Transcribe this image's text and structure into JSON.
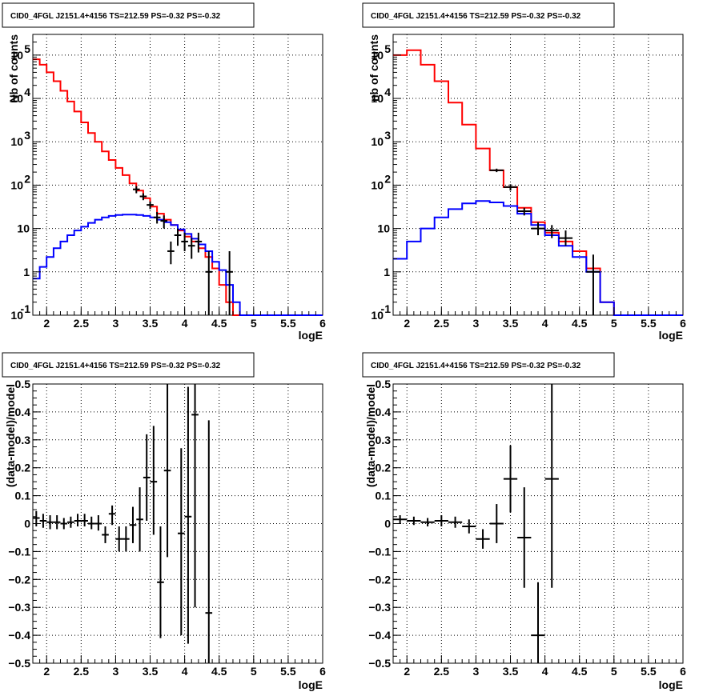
{
  "chart_data": [
    {
      "type": "histogram",
      "title": "CID0_4FGL J2151.4+4156 TS=212.59 PS=-0.32 PS=-0.32",
      "xlabel": "logE",
      "ylabel": "Nb of counts",
      "xlim": [
        1.8,
        6.0
      ],
      "ylim": [
        0.1,
        300000
      ],
      "yscale": "log",
      "grid": true,
      "x_ticks": [
        "2",
        "2.5",
        "3",
        "3.5",
        "4",
        "4.5",
        "5",
        "5.5",
        "6"
      ],
      "y_ticks": [
        {
          "v": 0.1,
          "b": "10",
          "e": "-1"
        },
        {
          "v": 1,
          "b": "1",
          "e": ""
        },
        {
          "v": 10,
          "b": "10",
          "e": ""
        },
        {
          "v": 100,
          "b": "10",
          "e": "2"
        },
        {
          "v": 1000,
          "b": "10",
          "e": "3"
        },
        {
          "v": 10000,
          "b": "10",
          "e": "4"
        },
        {
          "v": 100000,
          "b": "10",
          "e": "5"
        }
      ],
      "bin_edges": [
        1.8,
        1.9,
        2.0,
        2.1,
        2.2,
        2.3,
        2.4,
        2.5,
        2.6,
        2.7,
        2.8,
        2.9,
        3.0,
        3.1,
        3.2,
        3.3,
        3.4,
        3.5,
        3.6,
        3.7,
        3.8,
        3.9,
        4.0,
        4.1,
        4.2,
        4.3,
        4.4,
        4.5,
        4.6,
        4.7,
        4.8,
        4.9,
        5.0,
        5.1,
        5.2,
        5.3,
        5.4,
        5.5,
        5.6,
        5.7,
        5.8,
        5.9,
        6.0
      ],
      "series": [
        {
          "color": "#ff0000",
          "values": [
            80000,
            60000,
            40000,
            25000,
            15000,
            8500,
            5000,
            2800,
            1600,
            1000,
            600,
            380,
            250,
            170,
            110,
            75,
            50,
            32,
            22,
            16,
            12,
            9,
            6.5,
            5,
            3.5,
            2.2,
            1.2,
            0.5,
            0.2,
            0.1,
            0.1,
            0.1,
            0.1,
            0.1,
            0.1,
            0.1,
            0.1,
            0.1,
            0.1,
            0.1,
            0.1,
            0.1
          ]
        },
        {
          "color": "#0000ff",
          "values": [
            0.7,
            1.3,
            2.2,
            3.5,
            5,
            7,
            9,
            11,
            13.5,
            16,
            18,
            19.5,
            20.5,
            21,
            21,
            20.5,
            19.5,
            18,
            16,
            14,
            12,
            9.5,
            7.5,
            5.8,
            4.3,
            3,
            1.7,
            1.1,
            0.5,
            0.2,
            0.1,
            0.1,
            0.1,
            0.1,
            0.1,
            0.1,
            0.1,
            0.1,
            0.1,
            0.1,
            0.1,
            0.1
          ]
        }
      ],
      "points": [
        {
          "x": 3.3,
          "y": 80,
          "ylo": 65,
          "yhi": 95,
          "xerr": 0.05
        },
        {
          "x": 3.4,
          "y": 55,
          "ylo": 45,
          "yhi": 65,
          "xerr": 0.05
        },
        {
          "x": 3.5,
          "y": 35,
          "ylo": 28,
          "yhi": 42,
          "xerr": 0.05
        },
        {
          "x": 3.6,
          "y": 18,
          "ylo": 13,
          "yhi": 24,
          "xerr": 0.05
        },
        {
          "x": 3.7,
          "y": 15,
          "ylo": 10,
          "yhi": 20,
          "xerr": 0.05
        },
        {
          "x": 3.8,
          "y": 3,
          "ylo": 1.5,
          "yhi": 5,
          "xerr": 0.05
        },
        {
          "x": 3.9,
          "y": 7,
          "ylo": 4,
          "yhi": 10,
          "xerr": 0.05
        },
        {
          "x": 4.0,
          "y": 5,
          "ylo": 3,
          "yhi": 8,
          "xerr": 0.05
        },
        {
          "x": 4.1,
          "y": 4,
          "ylo": 2,
          "yhi": 6,
          "xerr": 0.05
        },
        {
          "x": 4.2,
          "y": 5,
          "ylo": 2.8,
          "yhi": 8,
          "xerr": 0.05
        },
        {
          "x": 4.35,
          "y": 1,
          "ylo": 0.1,
          "yhi": 3,
          "xerr": 0.05
        },
        {
          "x": 4.65,
          "y": 1,
          "ylo": 0.1,
          "yhi": 3,
          "xerr": 0.05
        }
      ]
    },
    {
      "type": "histogram",
      "title": "CID0_4FGL J2151.4+4156 TS=212.59 PS=-0.32 PS=-0.32",
      "xlabel": "logE",
      "ylabel": "nb of counts",
      "xlim": [
        1.8,
        6.0
      ],
      "ylim": [
        0.1,
        300000
      ],
      "yscale": "log",
      "grid": true,
      "x_ticks": [
        "2",
        "2.5",
        "3",
        "3.5",
        "4",
        "4.5",
        "5",
        "5.5",
        "6"
      ],
      "y_ticks": [
        {
          "v": 0.1,
          "b": "10",
          "e": "-1"
        },
        {
          "v": 1,
          "b": "1",
          "e": ""
        },
        {
          "v": 10,
          "b": "10",
          "e": ""
        },
        {
          "v": 100,
          "b": "10",
          "e": "2"
        },
        {
          "v": 1000,
          "b": "10",
          "e": "3"
        },
        {
          "v": 10000,
          "b": "10",
          "e": "4"
        },
        {
          "v": 100000,
          "b": "10",
          "e": "5"
        }
      ],
      "bin_edges": [
        1.8,
        2.0,
        2.2,
        2.4,
        2.6,
        2.8,
        3.0,
        3.2,
        3.4,
        3.6,
        3.8,
        4.0,
        4.2,
        4.4,
        4.6,
        4.8,
        5.0,
        5.2,
        5.4,
        5.6,
        5.8,
        6.0
      ],
      "series": [
        {
          "color": "#ff0000",
          "values": [
            100000,
            130000,
            60000,
            25000,
            8000,
            2500,
            700,
            220,
            90,
            30,
            14,
            8,
            5,
            3,
            1.2,
            0.2,
            0.1,
            0.1,
            0.1,
            0.1,
            0.1
          ]
        },
        {
          "color": "#0000ff",
          "values": [
            2,
            5,
            10,
            18,
            28,
            38,
            43,
            40,
            33,
            22,
            12,
            7,
            4,
            2.2,
            1,
            0.2,
            0.1,
            0.1,
            0.1,
            0.1,
            0.1
          ]
        }
      ],
      "points": [
        {
          "x": 3.3,
          "y": 220,
          "ylo": 200,
          "yhi": 240,
          "xerr": 0.1
        },
        {
          "x": 3.5,
          "y": 90,
          "ylo": 75,
          "yhi": 105,
          "xerr": 0.1
        },
        {
          "x": 3.7,
          "y": 25,
          "ylo": 20,
          "yhi": 30,
          "xerr": 0.1
        },
        {
          "x": 3.9,
          "y": 10,
          "ylo": 7,
          "yhi": 14,
          "xerr": 0.1
        },
        {
          "x": 4.1,
          "y": 9,
          "ylo": 6,
          "yhi": 12,
          "xerr": 0.1
        },
        {
          "x": 4.3,
          "y": 6,
          "ylo": 4,
          "yhi": 9,
          "xerr": 0.1
        },
        {
          "x": 4.7,
          "y": 1,
          "ylo": 0.1,
          "yhi": 2.5,
          "xerr": 0.1
        }
      ]
    },
    {
      "type": "errorbar",
      "title": "CID0_4FGL J2151.4+4156 TS=212.59 PS=-0.32 PS=-0.32",
      "xlabel": "logE",
      "ylabel": "(data-model)/model",
      "xlim": [
        1.8,
        6.0
      ],
      "ylim": [
        -0.5,
        0.5
      ],
      "yscale": "linear",
      "grid": true,
      "x_ticks": [
        "2",
        "2.5",
        "3",
        "3.5",
        "4",
        "4.5",
        "5",
        "5.5",
        "6"
      ],
      "y_ticks": [
        "-0.5",
        "-0.4",
        "-0.3",
        "-0.2",
        "-0.1",
        "0",
        "0.1",
        "0.2",
        "0.3",
        "0.4",
        "0.5"
      ],
      "points": [
        {
          "x": 1.85,
          "y": 0.02,
          "ylo": -0.01,
          "yhi": 0.045,
          "xerr": 0.05
        },
        {
          "x": 1.95,
          "y": 0.01,
          "ylo": -0.015,
          "yhi": 0.035,
          "xerr": 0.05
        },
        {
          "x": 2.05,
          "y": 0.005,
          "ylo": -0.02,
          "yhi": 0.03,
          "xerr": 0.05
        },
        {
          "x": 2.15,
          "y": 0.005,
          "ylo": -0.02,
          "yhi": 0.03,
          "xerr": 0.05
        },
        {
          "x": 2.25,
          "y": 0.0,
          "ylo": -0.02,
          "yhi": 0.02,
          "xerr": 0.05
        },
        {
          "x": 2.35,
          "y": 0.005,
          "ylo": -0.015,
          "yhi": 0.025,
          "xerr": 0.05
        },
        {
          "x": 2.45,
          "y": 0.01,
          "ylo": -0.01,
          "yhi": 0.035,
          "xerr": 0.05
        },
        {
          "x": 2.55,
          "y": 0.01,
          "ylo": -0.01,
          "yhi": 0.035,
          "xerr": 0.05
        },
        {
          "x": 2.65,
          "y": 0.0,
          "ylo": -0.02,
          "yhi": 0.025,
          "xerr": 0.05
        },
        {
          "x": 2.75,
          "y": 0.0,
          "ylo": -0.025,
          "yhi": 0.03,
          "xerr": 0.05
        },
        {
          "x": 2.85,
          "y": -0.04,
          "ylo": -0.07,
          "yhi": -0.01,
          "xerr": 0.05
        },
        {
          "x": 2.95,
          "y": 0.035,
          "ylo": -0.005,
          "yhi": 0.065,
          "xerr": 0.05
        },
        {
          "x": 3.05,
          "y": -0.055,
          "ylo": -0.1,
          "yhi": -0.01,
          "xerr": 0.05
        },
        {
          "x": 3.15,
          "y": -0.055,
          "ylo": -0.1,
          "yhi": -0.01,
          "xerr": 0.05
        },
        {
          "x": 3.25,
          "y": -0.005,
          "ylo": -0.07,
          "yhi": 0.06,
          "xerr": 0.05
        },
        {
          "x": 3.35,
          "y": 0.015,
          "ylo": -0.1,
          "yhi": 0.13,
          "xerr": 0.05
        },
        {
          "x": 3.45,
          "y": 0.165,
          "ylo": 0.01,
          "yhi": 0.32,
          "xerr": 0.05
        },
        {
          "x": 3.55,
          "y": 0.15,
          "ylo": -0.04,
          "yhi": 0.35,
          "xerr": 0.05
        },
        {
          "x": 3.65,
          "y": -0.21,
          "ylo": -0.41,
          "yhi": -0.01,
          "xerr": 0.05
        },
        {
          "x": 3.75,
          "y": 0.19,
          "ylo": -0.12,
          "yhi": 0.5,
          "xerr": 0.05
        },
        {
          "x": 3.95,
          "y": -0.035,
          "ylo": -0.4,
          "yhi": 0.27,
          "xerr": 0.05
        },
        {
          "x": 4.05,
          "y": 0.025,
          "ylo": -0.43,
          "yhi": 0.49,
          "xerr": 0.05
        },
        {
          "x": 4.15,
          "y": 0.39,
          "ylo": -0.3,
          "yhi": 0.5,
          "xerr": 0.05
        },
        {
          "x": 4.35,
          "y": -0.32,
          "ylo": -0.5,
          "yhi": 0.37,
          "xerr": 0.05
        }
      ]
    },
    {
      "type": "errorbar",
      "title": "CID0_4FGL J2151.4+4156 TS=212.59 PS=-0.32 PS=-0.32",
      "xlabel": "logE",
      "ylabel": "(data-model)/model",
      "xlim": [
        1.8,
        6.0
      ],
      "ylim": [
        -0.5,
        0.5
      ],
      "yscale": "linear",
      "grid": true,
      "x_ticks": [
        "2",
        "2.5",
        "3",
        "3.5",
        "4",
        "4.5",
        "5",
        "5.5",
        "6"
      ],
      "y_ticks": [
        "-0.5",
        "-0.4",
        "-0.3",
        "-0.2",
        "-0.1",
        "0",
        "0.1",
        "0.2",
        "0.3",
        "0.4",
        "0.5"
      ],
      "points": [
        {
          "x": 1.9,
          "y": 0.015,
          "ylo": 0.0,
          "yhi": 0.03,
          "xerr": 0.1
        },
        {
          "x": 2.1,
          "y": 0.01,
          "ylo": -0.005,
          "yhi": 0.025,
          "xerr": 0.1
        },
        {
          "x": 2.3,
          "y": 0.005,
          "ylo": -0.01,
          "yhi": 0.02,
          "xerr": 0.1
        },
        {
          "x": 2.5,
          "y": 0.01,
          "ylo": -0.01,
          "yhi": 0.03,
          "xerr": 0.1
        },
        {
          "x": 2.7,
          "y": 0.005,
          "ylo": -0.015,
          "yhi": 0.025,
          "xerr": 0.1
        },
        {
          "x": 2.9,
          "y": -0.01,
          "ylo": -0.035,
          "yhi": 0.015,
          "xerr": 0.1
        },
        {
          "x": 3.1,
          "y": -0.055,
          "ylo": -0.09,
          "yhi": -0.02,
          "xerr": 0.1
        },
        {
          "x": 3.3,
          "y": 0.0,
          "ylo": -0.07,
          "yhi": 0.07,
          "xerr": 0.1
        },
        {
          "x": 3.5,
          "y": 0.16,
          "ylo": 0.04,
          "yhi": 0.28,
          "xerr": 0.1
        },
        {
          "x": 3.7,
          "y": -0.05,
          "ylo": -0.23,
          "yhi": 0.13,
          "xerr": 0.1
        },
        {
          "x": 3.9,
          "y": -0.4,
          "ylo": -0.5,
          "yhi": -0.21,
          "xerr": 0.1
        },
        {
          "x": 4.1,
          "y": 0.16,
          "ylo": -0.23,
          "yhi": 0.5,
          "xerr": 0.1
        }
      ]
    }
  ]
}
